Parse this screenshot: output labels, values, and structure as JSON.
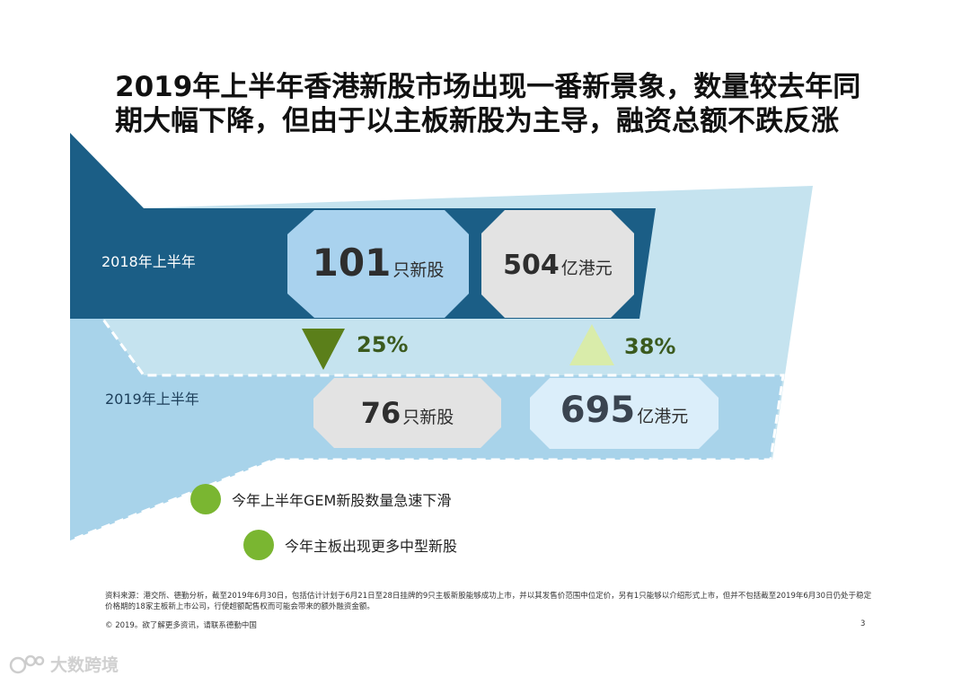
{
  "title": {
    "line1": "2019年上半年香港新股市场出现一番新景象，数量较去年同",
    "line2": "期大幅下降，但由于以主板新股为主导，融资总额不跌反涨"
  },
  "row_2018": {
    "label": "2018年上半年",
    "count_value": "101",
    "count_unit": "只新股",
    "amount_value": "504",
    "amount_unit": "亿港元"
  },
  "row_2019": {
    "label": "2019年上半年",
    "count_value": "76",
    "count_unit": "只新股",
    "amount_value": "695",
    "amount_unit": "亿港元"
  },
  "changes": {
    "count_change": "25%",
    "count_direction": "down",
    "amount_change": "38%",
    "amount_direction": "up"
  },
  "bullets": [
    "今年上半年GEM新股数量急速下滑",
    "今年主板出现更多中型新股"
  ],
  "footnote": {
    "source": "资料来源：港交所、德勤分析，截至2019年6月30日，包括估计计划于6月21日至28日挂牌的9只主板新股能够成功上市，并以其发售价范围中位定价，另有1只能够以介绍形式上市，但并不包括截至2019年6月30日仍处于稳定价格期的18家主板新上市公司，行使超额配售权而可能会带来的额外融资金额。",
    "copyright": "© 2019。欲了解更多资讯，请联系德勤中国",
    "page": "3"
  },
  "watermark": "大数跨境",
  "colors": {
    "dark_band": "#1b5e86",
    "light_band": "#a8d3ea",
    "pale_band": "#c5e3ef",
    "box_light_blue": "#a9d2ee",
    "box_gray": "#e3e3e3",
    "box_pale_blue": "#dbeefa",
    "arrow_down": "#5b7f1a",
    "arrow_up": "#d9ecaa",
    "bullet_dot": "#7ab631"
  }
}
